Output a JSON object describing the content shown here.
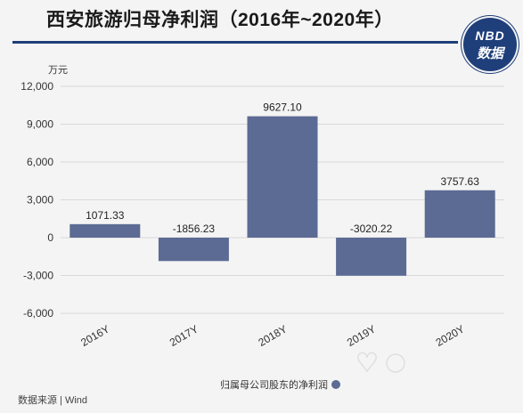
{
  "header": {
    "title": "西安旅游归母净利润（2016年~2020年）"
  },
  "logo": {
    "top": "NBD",
    "bottom": "数据"
  },
  "footer": {
    "source": "数据来源 | Wind"
  },
  "colors": {
    "bar": "#5c6b94",
    "accent": "#1f3f7a",
    "grid": "#d9d9d9"
  },
  "chart_data": {
    "type": "bar",
    "unit_label": "万元",
    "categories": [
      "2016Y",
      "2017Y",
      "2018Y",
      "2019Y",
      "2020Y"
    ],
    "series": [
      {
        "name": "归属母公司股东的净利润",
        "values": [
          1071.33,
          -1856.23,
          9627.1,
          -3020.22,
          3757.63
        ],
        "labels": [
          "1071.33",
          "-1856.23",
          "9627.10",
          "-3020.22",
          "3757.63"
        ]
      }
    ],
    "ylim": [
      -6000,
      12000
    ],
    "yticks": [
      12000,
      9000,
      6000,
      3000,
      0,
      -3000,
      -6000
    ],
    "ytick_labels": [
      "12,000",
      "9,000",
      "6,000",
      "3,000",
      "0",
      "-3,000",
      "-6,000"
    ],
    "grid": true,
    "legend_position": "bottom"
  }
}
